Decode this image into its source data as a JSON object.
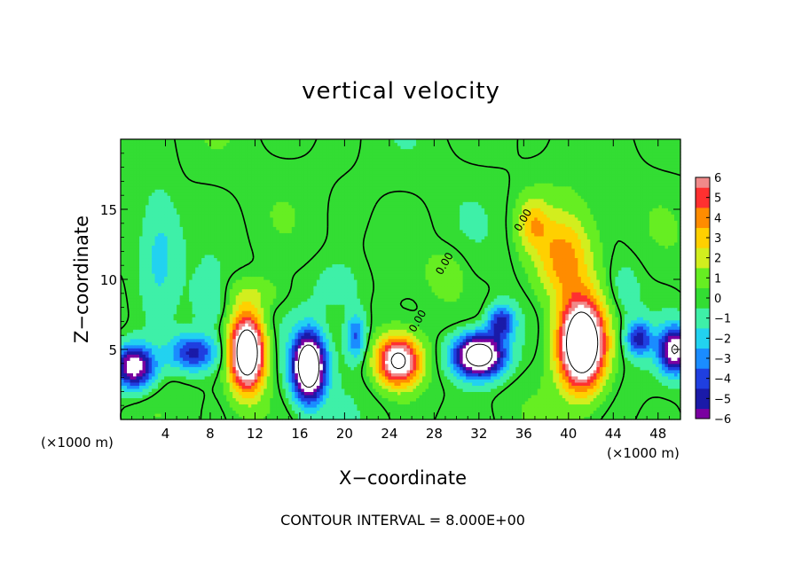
{
  "chart_data": {
    "type": "heatmap",
    "title": "vertical velocity",
    "xlabel": "X−coordinate",
    "ylabel": "Z−coordinate",
    "x_unit_note_left": "(×1000 m)",
    "x_unit_note_right": "(×1000 m)",
    "footer": "CONTOUR INTERVAL = 8.000E+00",
    "xlim": [
      0,
      50
    ],
    "ylim": [
      0,
      20
    ],
    "x_ticks": [
      4,
      8,
      12,
      16,
      20,
      24,
      28,
      32,
      36,
      40,
      44,
      48
    ],
    "y_ticks": [
      5,
      10,
      15
    ],
    "contour_interval": 8.0,
    "contour_label": "0.00",
    "colorbar": {
      "min": -6,
      "max": 6,
      "ticks": [
        6,
        5,
        4,
        3,
        2,
        1,
        0,
        -1,
        -2,
        -3,
        -4,
        -5,
        -6
      ],
      "tick_labels": [
        "6",
        "5",
        "4",
        "3",
        "2",
        "1",
        "0",
        "−1",
        "−2",
        "−3",
        "−4",
        "−5",
        "−6"
      ],
      "colors": [
        "#7a00a0",
        "#1a1aa8",
        "#1f3fe0",
        "#1a8cff",
        "#22d2f0",
        "#3ef0a8",
        "#33dd33",
        "#66ee22",
        "#d2ee1e",
        "#ffd000",
        "#ff8c00",
        "#ff3030",
        "#f08a8a"
      ]
    },
    "features": [
      {
        "kind": "updraft",
        "x": 11.3,
        "z": 4.8,
        "sx": 1.5,
        "sz": 2.6,
        "amp": 12
      },
      {
        "kind": "updraft",
        "x": 24.8,
        "z": 4.2,
        "sx": 1.9,
        "sz": 1.7,
        "amp": 9
      },
      {
        "kind": "updraft",
        "x": 41.2,
        "z": 5.4,
        "sx": 2.0,
        "sz": 3.0,
        "amp": 13
      },
      {
        "kind": "updraft",
        "x": 39.6,
        "z": 11.5,
        "sx": 2.6,
        "sz": 3.2,
        "amp": 4.2
      },
      {
        "kind": "updraft",
        "x": 36.8,
        "z": 14.0,
        "sx": 1.4,
        "sz": 1.8,
        "amp": 2.8
      },
      {
        "kind": "updraft",
        "x": 29.0,
        "z": 10.5,
        "sx": 1.6,
        "sz": 1.6,
        "amp": 1.2
      },
      {
        "kind": "updraft",
        "x": 12.0,
        "z": 9.0,
        "sx": 2.6,
        "sz": 1.3,
        "amp": 1.4
      },
      {
        "kind": "downdraft",
        "x": 16.8,
        "z": 3.8,
        "sx": 1.4,
        "sz": 2.3,
        "amp": -12
      },
      {
        "kind": "downdraft",
        "x": 32.0,
        "z": 4.6,
        "sx": 2.2,
        "sz": 1.5,
        "amp": -11
      },
      {
        "kind": "downdraft",
        "x": 1.2,
        "z": 3.8,
        "sx": 1.8,
        "sz": 1.5,
        "amp": -8
      },
      {
        "kind": "downdraft",
        "x": 49.5,
        "z": 5.0,
        "sx": 1.4,
        "sz": 1.6,
        "amp": -8
      },
      {
        "kind": "downdraft",
        "x": 6.5,
        "z": 4.8,
        "sx": 2.2,
        "sz": 1.3,
        "amp": -5
      },
      {
        "kind": "downdraft",
        "x": 46.3,
        "z": 5.8,
        "sx": 1.1,
        "sz": 1.2,
        "amp": -5
      },
      {
        "kind": "downdraft",
        "x": 34.0,
        "z": 7.0,
        "sx": 1.2,
        "sz": 1.2,
        "amp": -5
      },
      {
        "kind": "downdraft",
        "x": 21.0,
        "z": 6.0,
        "sx": 0.9,
        "sz": 1.6,
        "amp": -4
      },
      {
        "kind": "downdraft",
        "x": 3.5,
        "z": 12.0,
        "sx": 1.6,
        "sz": 4.0,
        "amp": -1.8
      },
      {
        "kind": "downdraft",
        "x": 8.0,
        "z": 8.5,
        "sx": 1.5,
        "sz": 2.0,
        "amp": -1.5
      },
      {
        "kind": "downdraft",
        "x": 19.5,
        "z": 9.5,
        "sx": 2.5,
        "sz": 2.0,
        "amp": -1.2
      },
      {
        "kind": "downdraft",
        "x": 45.0,
        "z": 9.5,
        "sx": 1.5,
        "sz": 2.0,
        "amp": -1.0
      }
    ]
  }
}
